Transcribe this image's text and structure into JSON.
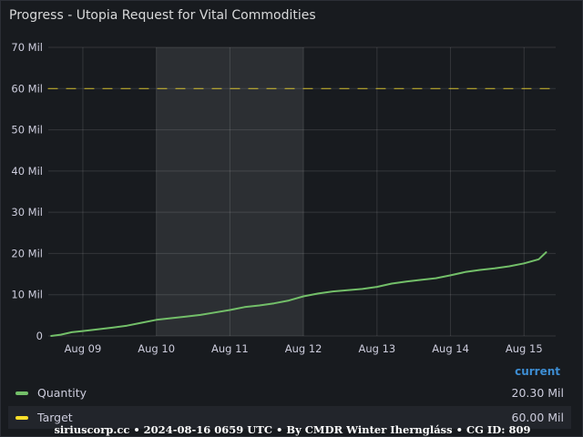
{
  "panel": {
    "title": "Progress - Utopia Request for Vital Commodities"
  },
  "legend": {
    "header": "current",
    "items": [
      {
        "name": "Quantity",
        "color": "#73bf69",
        "value": "20.30 Mil"
      },
      {
        "name": "Target",
        "color": "#fade2a",
        "value": "60.00 Mil"
      }
    ]
  },
  "footer": "siriuscorp.cc • 2024-08-16 0659 UTC • By CMDR Winter Iherngláss • CG ID: 809",
  "chart_data": {
    "type": "line",
    "title": "Progress - Utopia Request for Vital Commodities",
    "xlabel": "",
    "ylabel": "",
    "x_unit": "days since 2024-08-08 00:00",
    "xlim": [
      0.53,
      7.43
    ],
    "ylim": [
      0,
      70
    ],
    "y_ticks": [
      0,
      10,
      20,
      30,
      40,
      50,
      60,
      70
    ],
    "y_tick_labels": [
      "0",
      "10 Mil",
      "20 Mil",
      "30 Mil",
      "40 Mil",
      "50 Mil",
      "60 Mil",
      "70 Mil"
    ],
    "x_ticks": [
      1,
      2,
      3,
      4,
      5,
      6,
      7
    ],
    "x_tick_labels": [
      "Aug 09",
      "Aug 10",
      "Aug 11",
      "Aug 12",
      "Aug 13",
      "Aug 14",
      "Aug 15"
    ],
    "grid": true,
    "highlight_region": [
      2,
      4
    ],
    "series": [
      {
        "name": "Quantity",
        "color": "#73bf69",
        "style": "solid",
        "x": [
          0.57,
          0.7,
          0.85,
          1.0,
          1.2,
          1.4,
          1.6,
          1.8,
          2.0,
          2.2,
          2.4,
          2.6,
          2.8,
          3.0,
          3.2,
          3.4,
          3.6,
          3.8,
          4.0,
          4.2,
          4.4,
          4.6,
          4.8,
          5.0,
          5.2,
          5.4,
          5.6,
          5.8,
          6.0,
          6.2,
          6.4,
          6.6,
          6.8,
          7.0,
          7.2,
          7.3
        ],
        "values": [
          0,
          0.3,
          0.9,
          1.2,
          1.6,
          2.0,
          2.5,
          3.2,
          3.9,
          4.3,
          4.7,
          5.1,
          5.7,
          6.3,
          7.0,
          7.4,
          7.9,
          8.6,
          9.6,
          10.3,
          10.8,
          11.1,
          11.4,
          11.9,
          12.7,
          13.2,
          13.6,
          14.0,
          14.7,
          15.5,
          16.0,
          16.4,
          16.9,
          17.6,
          18.6,
          20.3
        ]
      },
      {
        "name": "Target",
        "color": "#fade2a",
        "style": "dashed",
        "x": [
          0.53,
          7.43
        ],
        "values": [
          60,
          60
        ]
      }
    ],
    "legend_position": "bottom",
    "legend_values": {
      "Quantity": "20.30 Mil",
      "Target": "60.00 Mil"
    }
  }
}
